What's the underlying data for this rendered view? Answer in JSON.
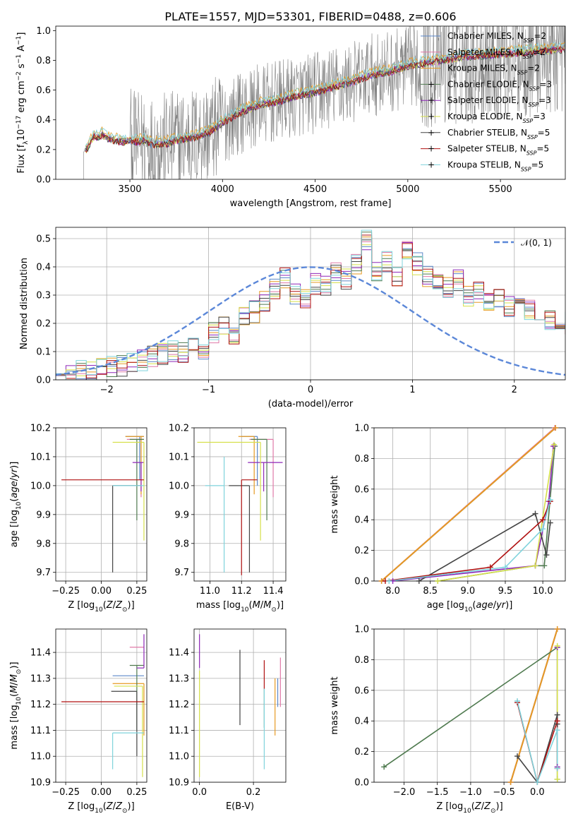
{
  "figure": {
    "title": "PLATE=1557, MJD=53301, FIBERID=0488, z=0.606"
  },
  "colors": {
    "Chabrier MILES": "#5b87c8",
    "Salpeter MILES": "#e07aa8",
    "Kroupa MILES": "#e69a22",
    "Chabrier ELODIE": "#4f7a4f",
    "Salpeter ELODIE": "#8e27b8",
    "Kroupa ELODIE": "#d6e04a",
    "Chabrier STELIB": "#444444",
    "Salpeter STELIB": "#b01010",
    "Kroupa STELIB": "#7fd3dc",
    "data": "#808080",
    "normal_curve": "#5b87d8",
    "grid": "#b0b0b0"
  },
  "chart_data": [
    {
      "type": "line",
      "panel": "spectrum",
      "title": "PLATE=1557, MJD=53301, FIBERID=0488, z=0.606",
      "xlabel": "wavelength [Angstrom, rest frame]",
      "ylabel_parts": [
        "Flux [f",
        "λ",
        "10",
        "−17",
        " erg cm",
        "−2",
        " s",
        "−1",
        " A",
        "−1",
        "]"
      ],
      "xlim": [
        3100,
        5850
      ],
      "ylim": [
        0,
        1.03
      ],
      "xticks": [
        3500,
        4000,
        4500,
        5000,
        5500
      ],
      "yticks": [
        0.0,
        0.2,
        0.4,
        0.6,
        0.8,
        1.0
      ],
      "legend_position": "right",
      "legend": [
        {
          "name": "Chabrier MILES, N",
          "sub": "SSP",
          "suffix": "=2"
        },
        {
          "name": "Salpeter MILES, N",
          "sub": "SSP",
          "suffix": "=2"
        },
        {
          "name": "Kroupa MILES, N",
          "sub": "SSP",
          "suffix": "=2"
        },
        {
          "name": "Chabrier ELODIE, N",
          "sub": "SSP",
          "suffix": "=3"
        },
        {
          "name": "Salpeter ELODIE, N",
          "sub": "SSP",
          "suffix": "=3"
        },
        {
          "name": "Kroupa ELODIE, N",
          "sub": "SSP",
          "suffix": "=3"
        },
        {
          "name": "Chabrier STELIB, N",
          "sub": "SSP",
          "suffix": "=5"
        },
        {
          "name": "Salpeter STELIB, N",
          "sub": "SSP",
          "suffix": "=5"
        },
        {
          "name": "Kroupa STELIB, N",
          "sub": "SSP",
          "suffix": "=5"
        }
      ],
      "model_continuum": {
        "x": [
          3270,
          3290,
          3310,
          3330,
          3350,
          3380,
          3420,
          3460,
          3500,
          3540,
          3580,
          3620,
          3660,
          3700,
          3750,
          3800,
          3850,
          3900,
          3950,
          4000,
          4100,
          4200,
          4300,
          4400,
          4500,
          4600,
          4700,
          4800,
          4900,
          5000,
          5100,
          5200,
          5300,
          5400,
          5500,
          5600,
          5700,
          5800
        ],
        "y": [
          0.2,
          0.26,
          0.29,
          0.28,
          0.3,
          0.27,
          0.26,
          0.25,
          0.26,
          0.25,
          0.26,
          0.23,
          0.24,
          0.24,
          0.26,
          0.27,
          0.28,
          0.3,
          0.33,
          0.38,
          0.45,
          0.5,
          0.52,
          0.56,
          0.58,
          0.62,
          0.65,
          0.7,
          0.72,
          0.76,
          0.78,
          0.8,
          0.82,
          0.83,
          0.84,
          0.85,
          0.86,
          0.87
        ]
      },
      "data_start_x": 3250,
      "data_noisy_from_x": 3500
    },
    {
      "type": "bar",
      "panel": "residual_histogram",
      "xlabel": "(data-model)/error",
      "ylabel": "Normed distribution",
      "xlim": [
        -2.5,
        2.5
      ],
      "ylim": [
        0,
        0.54
      ],
      "xticks": [
        -2,
        -1,
        0,
        1,
        2
      ],
      "yticks": [
        0.0,
        0.1,
        0.2,
        0.3,
        0.4,
        0.5
      ],
      "legend_position": "top-right",
      "curve_label": "𝒩(0, 1)",
      "bin_edges_start": -2.5,
      "bin_width": 0.1,
      "heights": [
        0.02,
        0.02,
        0.03,
        0.03,
        0.04,
        0.05,
        0.05,
        0.06,
        0.07,
        0.08,
        0.09,
        0.1,
        0.1,
        0.12,
        0.1,
        0.17,
        0.2,
        0.15,
        0.22,
        0.24,
        0.28,
        0.32,
        0.36,
        0.3,
        0.28,
        0.34,
        0.33,
        0.38,
        0.36,
        0.41,
        0.5,
        0.39,
        0.42,
        0.36,
        0.45,
        0.41,
        0.37,
        0.36,
        0.33,
        0.35,
        0.3,
        0.31,
        0.28,
        0.29,
        0.26,
        0.27,
        0.25,
        0.22,
        0.21,
        0.19,
        0.2,
        0.18,
        0.15,
        0.14,
        0.13,
        0.15,
        0.11,
        0.11,
        0.1,
        0.12,
        0.09,
        0.08,
        0.07,
        0.06,
        0.06,
        0.05,
        0.05,
        0.04,
        0.04,
        0.05
      ],
      "sigma": 1
    },
    {
      "type": "scatter",
      "panel": "age_vs_Z",
      "xlabel": "Z [log10(Z/Z⊙)]",
      "ylabel": "age [log10(age/yr)]",
      "xlim": [
        -0.32,
        0.32
      ],
      "ylim": [
        9.67,
        10.2
      ],
      "xticks": [
        -0.25,
        0.0,
        0.25
      ],
      "yticks": [
        9.7,
        9.8,
        9.9,
        10.0,
        10.1,
        10.2
      ],
      "points": [
        {
          "model": "Chabrier MILES",
          "x": 0.27,
          "y": 10.17,
          "xerr": [
            0.1,
            0.03
          ],
          "yerr": [
            0.15,
            0.0
          ]
        },
        {
          "model": "Salpeter MILES",
          "x": 0.28,
          "y": 10.16,
          "xerr": [
            0.1,
            0.02
          ],
          "yerr": [
            0.2,
            0.0
          ]
        },
        {
          "model": "Kroupa MILES",
          "x": 0.28,
          "y": 10.17,
          "xerr": [
            0.11,
            0.02
          ],
          "yerr": [
            0.2,
            0.0
          ]
        },
        {
          "model": "Chabrier ELODIE",
          "x": 0.25,
          "y": 10.16,
          "xerr": [
            0.05,
            0.05
          ],
          "yerr": [
            0.28,
            0.0
          ]
        },
        {
          "model": "Salpeter ELODIE",
          "x": 0.28,
          "y": 10.08,
          "xerr": [
            0.06,
            0.02
          ],
          "yerr": [
            0.1,
            0.0
          ]
        },
        {
          "model": "Kroupa ELODIE",
          "x": 0.3,
          "y": 10.15,
          "xerr": [
            0.22,
            0.0
          ],
          "yerr": [
            0.34,
            0.0
          ]
        },
        {
          "model": "Chabrier STELIB",
          "x": 0.08,
          "y": 10.0,
          "xerr": [
            0.0,
            0.2
          ],
          "yerr": [
            0.3,
            0.0
          ]
        },
        {
          "model": "Salpeter STELIB",
          "x": 0.3,
          "y": 10.02,
          "xerr": [
            0.58,
            0.0
          ],
          "yerr": [
            0.0,
            0.0
          ]
        },
        {
          "model": "Kroupa STELIB",
          "x": 0.3,
          "y": 10.0,
          "xerr": [
            0.22,
            0.0
          ],
          "yerr": [
            0.0,
            0.0
          ]
        }
      ]
    },
    {
      "type": "scatter",
      "panel": "age_vs_mass",
      "xlabel": "mass [log10(M/M⊙)]",
      "ylabel": "",
      "xlim": [
        10.9,
        11.48
      ],
      "ylim": [
        9.67,
        10.2
      ],
      "xticks": [
        11.0,
        11.2,
        11.4
      ],
      "yticks": [
        9.7,
        9.8,
        9.9,
        10.0,
        10.1,
        10.2
      ],
      "points": [
        {
          "model": "Chabrier MILES",
          "x": 11.3,
          "y": 10.17,
          "xerr": [
            0.1,
            0.0
          ],
          "yerr": [
            0.17,
            0.0
          ]
        },
        {
          "model": "Salpeter MILES",
          "x": 11.4,
          "y": 10.16,
          "xerr": [
            0.15,
            0.0
          ],
          "yerr": [
            0.2,
            0.0
          ]
        },
        {
          "model": "Kroupa MILES",
          "x": 11.28,
          "y": 10.17,
          "xerr": [
            0.1,
            0.0
          ],
          "yerr": [
            0.2,
            0.0
          ]
        },
        {
          "model": "Chabrier ELODIE",
          "x": 11.36,
          "y": 10.16,
          "xerr": [
            0.1,
            0.0
          ],
          "yerr": [
            0.28,
            0.0
          ]
        },
        {
          "model": "Salpeter ELODIE",
          "x": 11.34,
          "y": 10.08,
          "xerr": [
            0.1,
            0.12
          ],
          "yerr": [
            0.1,
            0.0
          ]
        },
        {
          "model": "Kroupa ELODIE",
          "x": 11.32,
          "y": 10.15,
          "xerr": [
            0.4,
            0.0
          ],
          "yerr": [
            0.34,
            0.0
          ]
        },
        {
          "model": "Chabrier STELIB",
          "x": 11.25,
          "y": 10.0,
          "xerr": [
            0.13,
            0.0
          ],
          "yerr": [
            0.3,
            0.0
          ]
        },
        {
          "model": "Salpeter STELIB",
          "x": 11.2,
          "y": 10.02,
          "xerr": [
            0.0,
            0.1
          ],
          "yerr": [
            0.33,
            0.0
          ]
        },
        {
          "model": "Kroupa STELIB",
          "x": 11.09,
          "y": 10.0,
          "xerr": [
            0.12,
            0.0
          ],
          "yerr": [
            0.3,
            0.1
          ]
        }
      ]
    },
    {
      "type": "line",
      "panel": "mass_weight_vs_age",
      "xlabel": "age [log10(age/yr)]",
      "ylabel": "mass weight",
      "xlim": [
        7.75,
        10.3
      ],
      "ylim": [
        0,
        1.0
      ],
      "xticks": [
        8.0,
        8.5,
        9.0,
        9.5,
        10.0
      ],
      "yticks": [
        0.0,
        0.2,
        0.4,
        0.6,
        0.8,
        1.0
      ],
      "series": [
        {
          "model": "Chabrier MILES",
          "x": [
            7.85,
            10.17
          ],
          "y": [
            0.0,
            1.0
          ]
        },
        {
          "model": "Salpeter MILES",
          "x": [
            7.85,
            10.16
          ],
          "y": [
            0.0,
            1.0
          ]
        },
        {
          "model": "Kroupa MILES",
          "x": [
            7.85,
            10.17
          ],
          "y": [
            0.0,
            1.0
          ]
        },
        {
          "model": "Chabrier ELODIE",
          "x": [
            8.6,
            9.9,
            10.02,
            10.16
          ],
          "y": [
            0.0,
            0.1,
            0.1,
            0.88
          ]
        },
        {
          "model": "Salpeter ELODIE",
          "x": [
            8.0,
            9.9,
            10.08,
            10.14
          ],
          "y": [
            0.0,
            0.1,
            0.52,
            0.88
          ]
        },
        {
          "model": "Kroupa ELODIE",
          "x": [
            8.6,
            9.9,
            10.15
          ],
          "y": [
            0.0,
            0.1,
            0.89
          ]
        },
        {
          "model": "Chabrier STELIB",
          "x": [
            8.35,
            9.9,
            10.05,
            10.1
          ],
          "y": [
            0.0,
            0.44,
            0.17,
            0.38
          ]
        },
        {
          "model": "Salpeter STELIB",
          "x": [
            7.9,
            9.3,
            10.0,
            10.1
          ],
          "y": [
            0.0,
            0.09,
            0.4,
            0.52
          ]
        },
        {
          "model": "Kroupa STELIB",
          "x": [
            7.95,
            9.5,
            10.0,
            10.1
          ],
          "y": [
            0.0,
            0.09,
            0.34,
            0.53
          ]
        }
      ]
    },
    {
      "type": "scatter",
      "panel": "mass_vs_Z",
      "xlabel": "Z [log10(Z/Z⊙)]",
      "ylabel": "mass [log10(M/M⊙)]",
      "xlim": [
        -0.32,
        0.32
      ],
      "ylim": [
        10.9,
        11.49
      ],
      "xticks": [
        -0.25,
        0.0,
        0.25
      ],
      "yticks": [
        10.9,
        11.0,
        11.1,
        11.2,
        11.3,
        11.4
      ],
      "points": [
        {
          "model": "Chabrier MILES",
          "x": 0.3,
          "y": 11.31,
          "xerr": [
            0.22,
            0.0
          ],
          "yerr": [
            0.0,
            0.0
          ]
        },
        {
          "model": "Salpeter MILES",
          "x": 0.3,
          "y": 11.42,
          "xerr": [
            0.1,
            0.0
          ],
          "yerr": [
            0.0,
            0.0
          ]
        },
        {
          "model": "Kroupa MILES",
          "x": 0.3,
          "y": 11.28,
          "xerr": [
            0.22,
            0.0
          ],
          "yerr": [
            0.2,
            0.0
          ]
        },
        {
          "model": "Chabrier ELODIE",
          "x": 0.25,
          "y": 11.35,
          "xerr": [
            0.05,
            0.05
          ],
          "yerr": [
            0.25,
            0.0
          ]
        },
        {
          "model": "Salpeter ELODIE",
          "x": 0.3,
          "y": 11.34,
          "xerr": [
            0.05,
            0.0
          ],
          "yerr": [
            0.0,
            0.13
          ]
        },
        {
          "model": "Kroupa ELODIE",
          "x": 0.29,
          "y": 11.27,
          "xerr": [
            0.2,
            0.0
          ],
          "yerr": [
            0.35,
            0.0
          ]
        },
        {
          "model": "Chabrier STELIB",
          "x": 0.25,
          "y": 11.25,
          "xerr": [
            0.18,
            0.0
          ],
          "yerr": [
            0.25,
            0.0
          ]
        },
        {
          "model": "Salpeter STELIB",
          "x": 0.3,
          "y": 11.21,
          "xerr": [
            0.58,
            0.0
          ],
          "yerr": [
            0.0,
            0.0
          ]
        },
        {
          "model": "Kroupa STELIB",
          "x": 0.08,
          "y": 11.09,
          "xerr": [
            0.0,
            0.22
          ],
          "yerr": [
            0.14,
            0.0
          ]
        }
      ]
    },
    {
      "type": "scatter",
      "panel": "mass_vs_EBV",
      "xlabel": "E(B-V)",
      "ylabel": "",
      "xlim": [
        -0.02,
        0.32
      ],
      "ylim": [
        10.9,
        11.49
      ],
      "xticks": [
        0.0,
        0.2
      ],
      "yticks": [
        10.9,
        11.0,
        11.1,
        11.2,
        11.3,
        11.4
      ],
      "points": [
        {
          "model": "Chabrier MILES",
          "x": 0.29,
          "y": 11.19,
          "yerr": [
            0.0,
            0.11
          ]
        },
        {
          "model": "Salpeter MILES",
          "x": 0.3,
          "y": 11.3,
          "yerr": [
            0.11,
            0.08
          ]
        },
        {
          "model": "Kroupa MILES",
          "x": 0.28,
          "y": 11.2,
          "yerr": [
            0.12,
            0.1
          ]
        },
        {
          "model": "Chabrier ELODIE",
          "x": 0.24,
          "y": 11.16,
          "yerr": [
            0.05,
            0.1
          ]
        },
        {
          "model": "Salpeter ELODIE",
          "x": 0.0,
          "y": 11.34,
          "yerr": [
            0.0,
            0.13
          ]
        },
        {
          "model": "Kroupa ELODIE",
          "x": 0.0,
          "y": 11.2,
          "yerr": [
            0.28,
            0.13
          ]
        },
        {
          "model": "Chabrier STELIB",
          "x": 0.15,
          "y": 11.27,
          "yerr": [
            0.15,
            0.14
          ]
        },
        {
          "model": "Salpeter STELIB",
          "x": 0.24,
          "y": 11.32,
          "yerr": [
            0.06,
            0.05
          ]
        },
        {
          "model": "Kroupa STELIB",
          "x": 0.24,
          "y": 11.1,
          "yerr": [
            0.15,
            0.16
          ]
        }
      ]
    },
    {
      "type": "line",
      "panel": "mass_weight_vs_Z",
      "xlabel": "Z [log10(Z/Z⊙)]",
      "ylabel": "mass weight",
      "xlim": [
        -2.45,
        0.42
      ],
      "ylim": [
        0,
        1.0
      ],
      "xticks": [
        -2.0,
        -1.5,
        -1.0,
        -0.5,
        0.0
      ],
      "yticks": [
        0.0,
        0.2,
        0.4,
        0.6,
        0.8,
        1.0
      ],
      "series": [
        {
          "model": "Chabrier MILES",
          "x": [
            -0.4,
            0.3
          ],
          "y": [
            0.0,
            1.0
          ]
        },
        {
          "model": "Salpeter MILES",
          "x": [
            -0.4,
            0.3
          ],
          "y": [
            0.0,
            1.0
          ]
        },
        {
          "model": "Kroupa MILES",
          "x": [
            -0.4,
            0.3
          ],
          "y": [
            0.0,
            1.0
          ]
        },
        {
          "model": "Chabrier ELODIE",
          "x": [
            -2.3,
            0.3,
            0.3
          ],
          "y": [
            0.1,
            0.88,
            0.02
          ]
        },
        {
          "model": "Salpeter ELODIE",
          "x": [
            0.3,
            0.3
          ],
          "y": [
            0.88,
            0.1
          ]
        },
        {
          "model": "Kroupa ELODIE",
          "x": [
            0.3,
            0.3
          ],
          "y": [
            0.89,
            0.02
          ]
        },
        {
          "model": "Chabrier STELIB",
          "x": [
            -0.3,
            0.0,
            0.3,
            0.3
          ],
          "y": [
            0.17,
            0.0,
            0.44,
            0.38
          ]
        },
        {
          "model": "Salpeter STELIB",
          "x": [
            -0.3,
            0.0,
            0.3,
            0.3
          ],
          "y": [
            0.52,
            0.0,
            0.4,
            0.09
          ]
        },
        {
          "model": "Kroupa STELIB",
          "x": [
            -0.3,
            0.0,
            0.3,
            0.3
          ],
          "y": [
            0.53,
            0.0,
            0.34,
            0.09
          ]
        }
      ]
    }
  ]
}
